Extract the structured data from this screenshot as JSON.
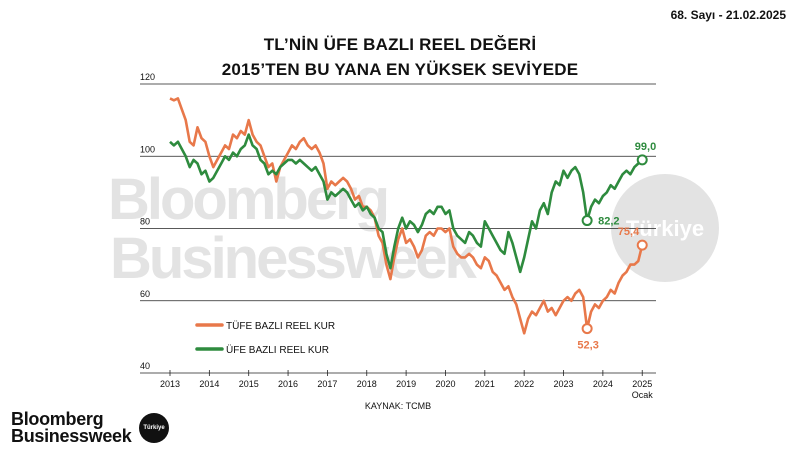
{
  "header": {
    "issue": "68. Sayı - 21.02.2025",
    "title_line1": "TL’NİN ÜFE BAZLI REEL DEĞERİ",
    "title_line2": "2015’TEN BU YANA EN YÜKSEK SEVİYEDE"
  },
  "watermark": {
    "line1": "Bloomberg",
    "line2": "Businessweek",
    "badge": "Türkiye"
  },
  "footer": {
    "brand_line1": "Bloomberg",
    "brand_line2": "Businessweek",
    "badge": "Türkiye"
  },
  "colors": {
    "tufe": "#e8784a",
    "ufe": "#2e8b3e",
    "grid": "#222222",
    "watermark": "#e2e2e2"
  },
  "chart_data": {
    "type": "line",
    "source": "KAYNAK: TCMB",
    "x_ticks": [
      "2013",
      "2014",
      "2015",
      "2016",
      "2017",
      "2018",
      "2019",
      "2020",
      "2021",
      "2022",
      "2023",
      "2024",
      "2025"
    ],
    "x_sub_label": "Ocak",
    "xlim": [
      2013,
      2025.35
    ],
    "ylim": [
      40,
      120
    ],
    "y_ticks": [
      40,
      60,
      80,
      100,
      120
    ],
    "grid": true,
    "legend_position": "bottom-left",
    "series": [
      {
        "name": "TÜFE BAZLI REEL KUR",
        "color": "#e8784a",
        "end_label": "75,4",
        "min_label": "52,3",
        "points": [
          [
            2013.0,
            116
          ],
          [
            2013.1,
            115.5
          ],
          [
            2013.2,
            116
          ],
          [
            2013.3,
            113
          ],
          [
            2013.4,
            110
          ],
          [
            2013.5,
            104
          ],
          [
            2013.6,
            103
          ],
          [
            2013.7,
            108
          ],
          [
            2013.8,
            105
          ],
          [
            2013.9,
            104
          ],
          [
            2014.0,
            100
          ],
          [
            2014.1,
            97
          ],
          [
            2014.2,
            99
          ],
          [
            2014.3,
            101
          ],
          [
            2014.4,
            103
          ],
          [
            2014.5,
            102
          ],
          [
            2014.6,
            106
          ],
          [
            2014.7,
            105
          ],
          [
            2014.8,
            107
          ],
          [
            2014.9,
            106
          ],
          [
            2015.0,
            110
          ],
          [
            2015.1,
            106
          ],
          [
            2015.2,
            104
          ],
          [
            2015.3,
            103
          ],
          [
            2015.4,
            100
          ],
          [
            2015.5,
            97
          ],
          [
            2015.6,
            98
          ],
          [
            2015.7,
            93
          ],
          [
            2015.8,
            97
          ],
          [
            2015.9,
            99
          ],
          [
            2016.0,
            101
          ],
          [
            2016.1,
            103
          ],
          [
            2016.2,
            102
          ],
          [
            2016.3,
            104
          ],
          [
            2016.4,
            105
          ],
          [
            2016.5,
            103
          ],
          [
            2016.6,
            102
          ],
          [
            2016.7,
            103
          ],
          [
            2016.8,
            101
          ],
          [
            2016.9,
            98
          ],
          [
            2017.0,
            91
          ],
          [
            2017.1,
            93
          ],
          [
            2017.2,
            92
          ],
          [
            2017.3,
            93
          ],
          [
            2017.4,
            94
          ],
          [
            2017.5,
            93
          ],
          [
            2017.6,
            91
          ],
          [
            2017.7,
            88
          ],
          [
            2017.8,
            89
          ],
          [
            2017.9,
            86
          ],
          [
            2018.0,
            86
          ],
          [
            2018.1,
            85
          ],
          [
            2018.2,
            83
          ],
          [
            2018.3,
            78
          ],
          [
            2018.4,
            76
          ],
          [
            2018.5,
            70
          ],
          [
            2018.6,
            66
          ],
          [
            2018.7,
            72
          ],
          [
            2018.8,
            77
          ],
          [
            2018.9,
            80
          ],
          [
            2019.0,
            76
          ],
          [
            2019.1,
            77
          ],
          [
            2019.2,
            75
          ],
          [
            2019.3,
            72
          ],
          [
            2019.4,
            74
          ],
          [
            2019.5,
            78
          ],
          [
            2019.6,
            79
          ],
          [
            2019.7,
            78
          ],
          [
            2019.8,
            80
          ],
          [
            2019.9,
            80
          ],
          [
            2020.0,
            79
          ],
          [
            2020.1,
            80
          ],
          [
            2020.2,
            75
          ],
          [
            2020.3,
            73
          ],
          [
            2020.4,
            72
          ],
          [
            2020.5,
            72
          ],
          [
            2020.6,
            73
          ],
          [
            2020.7,
            72
          ],
          [
            2020.8,
            70
          ],
          [
            2020.9,
            69
          ],
          [
            2021.0,
            72
          ],
          [
            2021.1,
            71
          ],
          [
            2021.2,
            68
          ],
          [
            2021.3,
            67
          ],
          [
            2021.4,
            65
          ],
          [
            2021.5,
            63
          ],
          [
            2021.6,
            64
          ],
          [
            2021.7,
            61
          ],
          [
            2021.8,
            59
          ],
          [
            2021.9,
            55
          ],
          [
            2022.0,
            51
          ],
          [
            2022.1,
            55
          ],
          [
            2022.2,
            57
          ],
          [
            2022.3,
            56
          ],
          [
            2022.4,
            58
          ],
          [
            2022.5,
            60
          ],
          [
            2022.6,
            57
          ],
          [
            2022.7,
            58
          ],
          [
            2022.8,
            56
          ],
          [
            2022.9,
            58
          ],
          [
            2023.0,
            60
          ],
          [
            2023.1,
            61
          ],
          [
            2023.2,
            60
          ],
          [
            2023.3,
            62
          ],
          [
            2023.4,
            63
          ],
          [
            2023.5,
            61
          ],
          [
            2023.6,
            52.3
          ],
          [
            2023.7,
            57
          ],
          [
            2023.8,
            59
          ],
          [
            2023.9,
            58
          ],
          [
            2024.0,
            60
          ],
          [
            2024.1,
            61
          ],
          [
            2024.2,
            63
          ],
          [
            2024.3,
            62
          ],
          [
            2024.4,
            65
          ],
          [
            2024.5,
            67
          ],
          [
            2024.6,
            68
          ],
          [
            2024.7,
            70
          ],
          [
            2024.8,
            70
          ],
          [
            2024.9,
            71
          ],
          [
            2025.0,
            75.4
          ]
        ]
      },
      {
        "name": "ÜFE BAZLI REEL KUR",
        "color": "#2e8b3e",
        "end_label": "99,0",
        "min_label": "82,2",
        "points": [
          [
            2013.0,
            104
          ],
          [
            2013.1,
            103
          ],
          [
            2013.2,
            104
          ],
          [
            2013.3,
            102
          ],
          [
            2013.4,
            100
          ],
          [
            2013.5,
            97
          ],
          [
            2013.6,
            99
          ],
          [
            2013.7,
            98
          ],
          [
            2013.8,
            95
          ],
          [
            2013.9,
            96
          ],
          [
            2014.0,
            93
          ],
          [
            2014.1,
            94
          ],
          [
            2014.2,
            96
          ],
          [
            2014.3,
            98
          ],
          [
            2014.4,
            100
          ],
          [
            2014.5,
            99
          ],
          [
            2014.6,
            101
          ],
          [
            2014.7,
            100
          ],
          [
            2014.8,
            102
          ],
          [
            2014.9,
            103
          ],
          [
            2015.0,
            106
          ],
          [
            2015.1,
            103
          ],
          [
            2015.2,
            102
          ],
          [
            2015.3,
            99
          ],
          [
            2015.4,
            98
          ],
          [
            2015.5,
            95
          ],
          [
            2015.6,
            96
          ],
          [
            2015.7,
            95
          ],
          [
            2015.8,
            97
          ],
          [
            2015.9,
            98
          ],
          [
            2016.0,
            99
          ],
          [
            2016.1,
            99
          ],
          [
            2016.2,
            98
          ],
          [
            2016.3,
            99
          ],
          [
            2016.4,
            98
          ],
          [
            2016.5,
            97
          ],
          [
            2016.6,
            96
          ],
          [
            2016.7,
            97
          ],
          [
            2016.8,
            95
          ],
          [
            2016.9,
            93
          ],
          [
            2017.0,
            88
          ],
          [
            2017.1,
            90
          ],
          [
            2017.2,
            89
          ],
          [
            2017.3,
            90
          ],
          [
            2017.4,
            91
          ],
          [
            2017.5,
            90
          ],
          [
            2017.6,
            88
          ],
          [
            2017.7,
            86
          ],
          [
            2017.8,
            87
          ],
          [
            2017.9,
            85
          ],
          [
            2018.0,
            86
          ],
          [
            2018.1,
            84
          ],
          [
            2018.2,
            83
          ],
          [
            2018.3,
            80
          ],
          [
            2018.4,
            79
          ],
          [
            2018.5,
            73
          ],
          [
            2018.6,
            69
          ],
          [
            2018.7,
            75
          ],
          [
            2018.8,
            80
          ],
          [
            2018.9,
            83
          ],
          [
            2019.0,
            80
          ],
          [
            2019.1,
            82
          ],
          [
            2019.2,
            81
          ],
          [
            2019.3,
            79
          ],
          [
            2019.4,
            81
          ],
          [
            2019.5,
            84
          ],
          [
            2019.6,
            85
          ],
          [
            2019.7,
            84
          ],
          [
            2019.8,
            86
          ],
          [
            2019.9,
            86
          ],
          [
            2020.0,
            84
          ],
          [
            2020.1,
            85
          ],
          [
            2020.2,
            80
          ],
          [
            2020.3,
            78
          ],
          [
            2020.4,
            77
          ],
          [
            2020.5,
            76
          ],
          [
            2020.6,
            79
          ],
          [
            2020.7,
            78
          ],
          [
            2020.8,
            76
          ],
          [
            2020.9,
            75
          ],
          [
            2021.0,
            82
          ],
          [
            2021.1,
            80
          ],
          [
            2021.2,
            78
          ],
          [
            2021.3,
            76
          ],
          [
            2021.4,
            74
          ],
          [
            2021.5,
            73
          ],
          [
            2021.6,
            79
          ],
          [
            2021.7,
            76
          ],
          [
            2021.8,
            72
          ],
          [
            2021.9,
            68
          ],
          [
            2022.0,
            72
          ],
          [
            2022.1,
            77
          ],
          [
            2022.2,
            82
          ],
          [
            2022.3,
            80
          ],
          [
            2022.4,
            85
          ],
          [
            2022.5,
            87
          ],
          [
            2022.6,
            84
          ],
          [
            2022.7,
            90
          ],
          [
            2022.8,
            93
          ],
          [
            2022.9,
            92
          ],
          [
            2023.0,
            96
          ],
          [
            2023.1,
            94
          ],
          [
            2023.2,
            96
          ],
          [
            2023.3,
            97
          ],
          [
            2023.4,
            95
          ],
          [
            2023.5,
            90
          ],
          [
            2023.6,
            82.2
          ],
          [
            2023.7,
            86
          ],
          [
            2023.8,
            88
          ],
          [
            2023.9,
            87
          ],
          [
            2024.0,
            89
          ],
          [
            2024.1,
            90
          ],
          [
            2024.2,
            92
          ],
          [
            2024.3,
            91
          ],
          [
            2024.4,
            93
          ],
          [
            2024.5,
            95
          ],
          [
            2024.6,
            96
          ],
          [
            2024.7,
            95
          ],
          [
            2024.8,
            97
          ],
          [
            2024.9,
            98
          ],
          [
            2025.0,
            99.0
          ]
        ]
      }
    ]
  }
}
